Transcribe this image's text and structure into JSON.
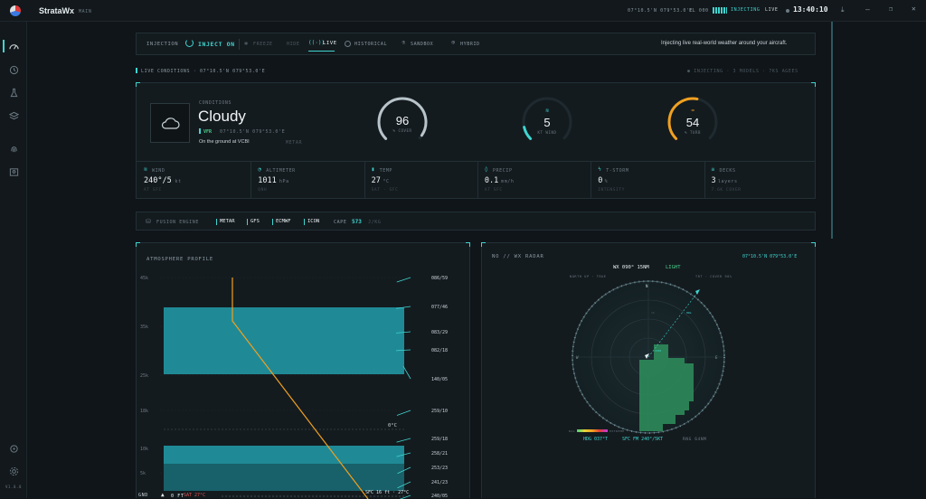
{
  "app": {
    "name": "StrataWx",
    "sub": "MAIN"
  },
  "titlebar": {
    "coords": "07°10.5'N 079°53.0'E",
    "fl": "FL 000",
    "injecting": "INJECTING",
    "live": "LIVE",
    "time": "13:40:10"
  },
  "sidebar": {
    "version": "v1.0.0"
  },
  "toolbar": {
    "label": "INJECTION",
    "inject_on": "INJECT ON",
    "freeze": "FREEZE",
    "hide": "HIDE",
    "live": "LIVE",
    "historical": "HISTORICAL",
    "sandbox": "SANDBOX",
    "hybrid": "HYBRID",
    "message": "Injecting live real-world weather around your aircraft."
  },
  "live_conditions": {
    "heading": "LIVE CONDITIONS · 07°10.5'N 079°53.0'E",
    "right": "● INJECTING · 3 MODELS · 7KS AGEES"
  },
  "conditions": {
    "label": "CONDITIONS",
    "summary": "Cloudy",
    "flight_rule": "VFR",
    "coords": "07°10.5'N 079°53.0'E",
    "location": "On the ground at VCBI",
    "source": "METAR"
  },
  "gauges": [
    {
      "value": "96",
      "label": "% COVER",
      "fill": 0.96,
      "color": "#b8c4ca"
    },
    {
      "value": "5",
      "label": "KT WIND",
      "fill": 0.12,
      "color": "#3fd5d0"
    },
    {
      "value": "54",
      "label": "% TURB",
      "fill": 0.54,
      "color": "#f0a020"
    }
  ],
  "metrics": [
    {
      "label": "WIND",
      "value": "240°/5",
      "unit": "kt",
      "sub": "AT SFC"
    },
    {
      "label": "ALTIMETER",
      "value": "1011",
      "unit": "hPa",
      "sub": "QNH"
    },
    {
      "label": "TEMP",
      "value": "27",
      "unit": "°C",
      "sub": "SAT · SFC"
    },
    {
      "label": "PRECIP",
      "value": "0.1",
      "unit": "mm/h",
      "sub": "AT SFC"
    },
    {
      "label": "T-STORM",
      "value": "0",
      "unit": "%",
      "sub": "INTENSITY"
    },
    {
      "label": "DECKS",
      "value": "3",
      "unit": "layers",
      "sub": "7.6K COVER"
    }
  ],
  "fusion": {
    "label": "FUSION ENGINE",
    "sources": [
      "METAR",
      "GFS",
      "ECMWF",
      "ICON"
    ],
    "cape_label": "CAPE",
    "cape_value": "573",
    "cape_unit": "J/KG"
  },
  "atmos": {
    "title": "ATMOSPHERE PROFILE",
    "y_ticks": [
      "45k",
      "35k",
      "25k",
      "18k",
      "10k",
      "5k"
    ],
    "freezing": "0°C",
    "winds": [
      "086/59",
      "077/46",
      "083/29",
      "082/18",
      "140/05",
      "259/10",
      "259/18",
      "258/21",
      "253/23",
      "241/23",
      "240/05"
    ],
    "bottom_left": "GND",
    "sat": "0 ft",
    "sat_temp": "SAT 27°C",
    "sfc": "SFC 16 ft · 27°C"
  },
  "radar": {
    "title": "NO // WX RADAR",
    "coords": "07°10.5'N 079°53.0'E",
    "range": "WX 090° 15NM",
    "intensity": "LIGHT",
    "north_label": "NORTH UP · TRUE",
    "alt_label": "TRT · COVER 90%",
    "hdg": "HDG 037°T",
    "sfc": "SFC FM 240°/5KT",
    "rng": "RNG 64NM",
    "scale_lo": "NIL",
    "scale_hi": "EXTREME"
  }
}
